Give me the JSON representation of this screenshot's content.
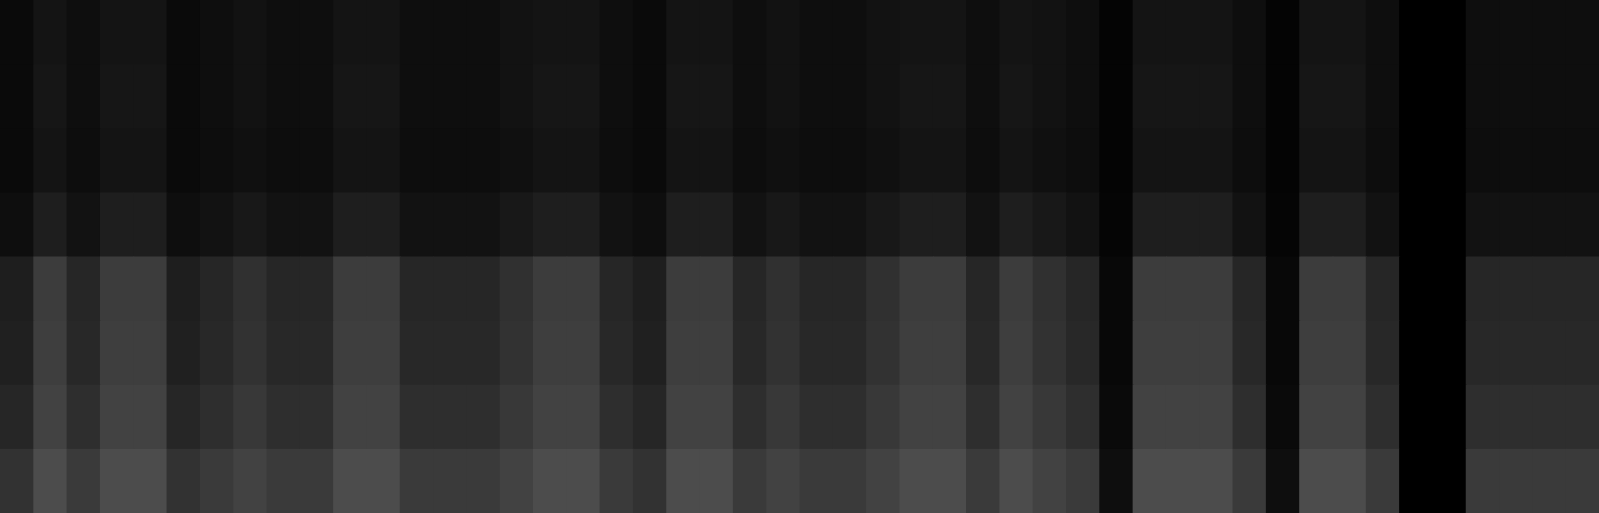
{
  "chart_data": {
    "type": "heatmap",
    "tick_labels": false,
    "cells": [
      [
        10,
        20,
        14,
        20,
        20,
        10,
        14,
        18,
        14,
        14,
        20,
        20,
        14,
        14,
        14,
        18,
        20,
        20,
        14,
        10,
        20,
        20,
        14,
        18,
        14,
        14,
        18,
        20,
        20,
        14,
        20,
        18,
        14,
        4,
        20,
        20,
        20,
        14,
        4,
        20,
        20,
        14,
        0,
        0,
        14,
        14,
        14,
        14
      ],
      [
        10,
        22,
        14,
        22,
        22,
        10,
        14,
        18,
        14,
        14,
        22,
        22,
        14,
        14,
        14,
        18,
        22,
        22,
        14,
        10,
        22,
        22,
        14,
        18,
        14,
        14,
        18,
        22,
        22,
        14,
        22,
        18,
        14,
        4,
        22,
        22,
        22,
        14,
        4,
        22,
        22,
        14,
        0,
        0,
        14,
        14,
        14,
        14
      ],
      [
        10,
        20,
        13,
        20,
        20,
        10,
        13,
        16,
        13,
        13,
        20,
        20,
        13,
        13,
        13,
        16,
        20,
        20,
        13,
        10,
        20,
        20,
        13,
        16,
        13,
        13,
        16,
        20,
        20,
        13,
        20,
        16,
        13,
        4,
        20,
        20,
        20,
        13,
        4,
        20,
        20,
        13,
        0,
        0,
        13,
        13,
        13,
        13
      ],
      [
        14,
        30,
        18,
        30,
        30,
        14,
        18,
        24,
        18,
        18,
        30,
        30,
        18,
        18,
        18,
        24,
        30,
        30,
        18,
        14,
        30,
        30,
        18,
        24,
        18,
        18,
        24,
        30,
        30,
        18,
        30,
        24,
        18,
        5,
        30,
        30,
        30,
        18,
        5,
        30,
        30,
        18,
        0,
        0,
        18,
        18,
        18,
        18
      ],
      [
        30,
        60,
        38,
        60,
        60,
        30,
        38,
        48,
        38,
        38,
        60,
        60,
        38,
        38,
        38,
        48,
        60,
        60,
        38,
        30,
        60,
        60,
        38,
        48,
        38,
        38,
        48,
        60,
        60,
        38,
        60,
        48,
        38,
        8,
        60,
        60,
        60,
        38,
        8,
        60,
        60,
        38,
        0,
        0,
        38,
        38,
        38,
        38
      ],
      [
        32,
        62,
        40,
        62,
        62,
        32,
        40,
        50,
        40,
        40,
        62,
        62,
        40,
        40,
        40,
        50,
        62,
        62,
        40,
        32,
        62,
        62,
        40,
        50,
        40,
        40,
        50,
        62,
        62,
        40,
        62,
        50,
        40,
        8,
        62,
        62,
        62,
        40,
        8,
        62,
        62,
        40,
        0,
        0,
        40,
        40,
        40,
        40
      ],
      [
        38,
        66,
        46,
        66,
        66,
        38,
        46,
        56,
        46,
        46,
        66,
        66,
        46,
        46,
        46,
        56,
        66,
        66,
        46,
        38,
        66,
        66,
        46,
        56,
        46,
        46,
        56,
        66,
        66,
        46,
        66,
        56,
        46,
        10,
        66,
        66,
        66,
        46,
        10,
        66,
        66,
        46,
        0,
        0,
        46,
        46,
        46,
        46
      ],
      [
        50,
        76,
        58,
        76,
        76,
        50,
        58,
        66,
        58,
        58,
        76,
        76,
        58,
        58,
        58,
        66,
        76,
        76,
        58,
        50,
        76,
        76,
        58,
        66,
        58,
        58,
        66,
        76,
        76,
        58,
        76,
        66,
        58,
        14,
        76,
        76,
        76,
        58,
        14,
        76,
        76,
        58,
        0,
        0,
        58,
        58,
        58,
        58
      ]
    ]
  }
}
